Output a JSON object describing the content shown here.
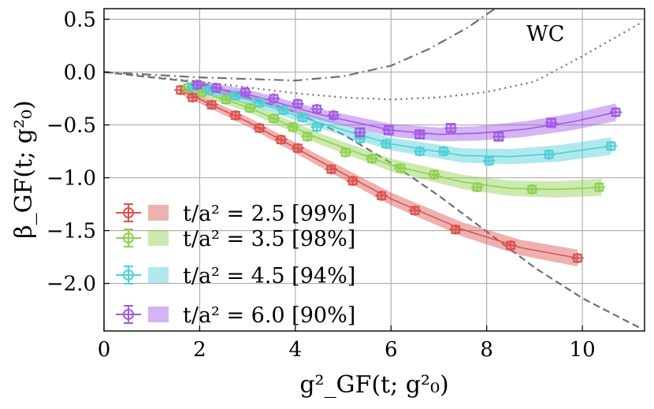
{
  "chart_data": {
    "type": "scatter",
    "xlabel": "g²_GF(t; g²₀)",
    "ylabel": "β_GF(t; g²₀)",
    "xlim": [
      0,
      11.3
    ],
    "ylim": [
      -2.45,
      0.6
    ],
    "x_ticks": [
      0,
      2,
      4,
      6,
      8,
      10
    ],
    "y_ticks": [
      0.5,
      0.0,
      -0.5,
      -1.0,
      -1.5,
      -2.0
    ],
    "x_tick_labels": [
      "0",
      "2",
      "4",
      "6",
      "8",
      "10"
    ],
    "y_tick_labels": [
      "0.5",
      "0.0",
      "−0.5",
      "−1.0",
      "−1.5",
      "−2.0"
    ],
    "grid": true,
    "legend_position": "lower-left",
    "annotation": "WC",
    "series": [
      {
        "name": "t/a² = 2.5 [99%]",
        "color": "#d9534f",
        "points": [
          {
            "x": 1.6,
            "y": -0.17,
            "marker": "o"
          },
          {
            "x": 1.85,
            "y": -0.24,
            "marker": "o"
          },
          {
            "x": 2.25,
            "y": -0.31,
            "marker": "o"
          },
          {
            "x": 2.75,
            "y": -0.41,
            "marker": "o"
          },
          {
            "x": 3.25,
            "y": -0.53,
            "marker": "o"
          },
          {
            "x": 3.7,
            "y": -0.64,
            "marker": "o"
          },
          {
            "x": 4.05,
            "y": -0.72,
            "marker": "o"
          },
          {
            "x": 4.75,
            "y": -0.92,
            "marker": "o"
          },
          {
            "x": 5.2,
            "y": -1.03,
            "marker": "o"
          },
          {
            "x": 5.8,
            "y": -1.17,
            "marker": "o"
          },
          {
            "x": 6.5,
            "y": -1.31,
            "marker": "o"
          },
          {
            "x": 7.35,
            "y": -1.49,
            "marker": "o"
          },
          {
            "x": 8.5,
            "y": -1.64,
            "marker": "o"
          },
          {
            "x": 9.9,
            "y": -1.76,
            "marker": "o"
          }
        ],
        "band": [
          [
            1.6,
            -0.17
          ],
          [
            3.0,
            -0.47
          ],
          [
            4.5,
            -0.84
          ],
          [
            6.0,
            -1.2
          ],
          [
            7.5,
            -1.49
          ],
          [
            8.7,
            -1.66
          ],
          [
            9.9,
            -1.76
          ]
        ]
      },
      {
        "name": "t/a² = 3.5 [98%]",
        "color": "#8fd14f",
        "points": [
          {
            "x": 1.75,
            "y": -0.15,
            "marker": "o"
          },
          {
            "x": 2.05,
            "y": -0.19,
            "marker": "o"
          },
          {
            "x": 2.55,
            "y": -0.26,
            "marker": "o"
          },
          {
            "x": 3.05,
            "y": -0.34,
            "marker": "o"
          },
          {
            "x": 3.55,
            "y": -0.44,
            "marker": "o"
          },
          {
            "x": 3.95,
            "y": -0.52,
            "marker": "o"
          },
          {
            "x": 4.25,
            "y": -0.61,
            "marker": "o"
          },
          {
            "x": 5.05,
            "y": -0.76,
            "marker": "o"
          },
          {
            "x": 5.6,
            "y": -0.82,
            "marker": "o"
          },
          {
            "x": 6.2,
            "y": -0.91,
            "marker": "o"
          },
          {
            "x": 6.9,
            "y": -0.97,
            "marker": "o"
          },
          {
            "x": 7.8,
            "y": -1.09,
            "marker": "o"
          },
          {
            "x": 8.95,
            "y": -1.11,
            "marker": "o"
          },
          {
            "x": 10.35,
            "y": -1.09,
            "marker": "o"
          }
        ],
        "band": [
          [
            1.75,
            -0.15
          ],
          [
            3.0,
            -0.33
          ],
          [
            4.5,
            -0.63
          ],
          [
            6.0,
            -0.88
          ],
          [
            7.5,
            -1.04
          ],
          [
            8.5,
            -1.1
          ],
          [
            9.5,
            -1.11
          ],
          [
            10.4,
            -1.09
          ]
        ]
      },
      {
        "name": "t/a² = 4.5 [94%]",
        "color": "#4fcfd6",
        "points": [
          {
            "x": 1.85,
            "y": -0.14,
            "marker": "o"
          },
          {
            "x": 2.2,
            "y": -0.17,
            "marker": "o"
          },
          {
            "x": 2.75,
            "y": -0.22,
            "marker": "o"
          },
          {
            "x": 3.25,
            "y": -0.29,
            "marker": "o"
          },
          {
            "x": 3.75,
            "y": -0.36,
            "marker": "o"
          },
          {
            "x": 4.15,
            "y": -0.43,
            "marker": "o"
          },
          {
            "x": 4.45,
            "y": -0.52,
            "marker": "o"
          },
          {
            "x": 5.35,
            "y": -0.63,
            "marker": "o"
          },
          {
            "x": 5.9,
            "y": -0.68,
            "marker": "o"
          },
          {
            "x": 6.6,
            "y": -0.75,
            "marker": "o"
          },
          {
            "x": 7.1,
            "y": -0.75,
            "marker": "o"
          },
          {
            "x": 8.05,
            "y": -0.84,
            "marker": "o"
          },
          {
            "x": 9.3,
            "y": -0.78,
            "marker": "o"
          },
          {
            "x": 10.6,
            "y": -0.7,
            "marker": "o"
          }
        ],
        "band": [
          [
            1.85,
            -0.14
          ],
          [
            3.0,
            -0.26
          ],
          [
            4.5,
            -0.48
          ],
          [
            6.0,
            -0.68
          ],
          [
            7.5,
            -0.79
          ],
          [
            8.5,
            -0.8
          ],
          [
            9.5,
            -0.77
          ],
          [
            10.6,
            -0.7
          ]
        ]
      },
      {
        "name": "t/a² = 6.0 [90%]",
        "color": "#a259e6",
        "points": [
          {
            "x": 1.95,
            "y": -0.12,
            "marker": "o"
          },
          {
            "x": 2.35,
            "y": -0.15,
            "marker": "o"
          },
          {
            "x": 2.95,
            "y": -0.19,
            "marker": "o"
          },
          {
            "x": 3.55,
            "y": -0.25,
            "marker": "o"
          },
          {
            "x": 4.05,
            "y": -0.3,
            "marker": "o"
          },
          {
            "x": 4.45,
            "y": -0.35,
            "marker": "o"
          },
          {
            "x": 4.8,
            "y": -0.41,
            "marker": "o"
          },
          {
            "x": 5.35,
            "y": -0.57,
            "marker": "s"
          },
          {
            "x": 5.95,
            "y": -0.55,
            "marker": "s"
          },
          {
            "x": 6.6,
            "y": -0.59,
            "marker": "s"
          },
          {
            "x": 7.25,
            "y": -0.53,
            "marker": "s"
          },
          {
            "x": 8.25,
            "y": -0.61,
            "marker": "s"
          },
          {
            "x": 9.35,
            "y": -0.48,
            "marker": "s"
          },
          {
            "x": 10.7,
            "y": -0.38,
            "marker": "o"
          }
        ],
        "band": [
          [
            1.95,
            -0.12
          ],
          [
            3.0,
            -0.21
          ],
          [
            4.5,
            -0.4
          ],
          [
            6.0,
            -0.55
          ],
          [
            7.0,
            -0.59
          ],
          [
            7.8,
            -0.58
          ],
          [
            8.8,
            -0.54
          ],
          [
            9.8,
            -0.47
          ],
          [
            10.7,
            -0.38
          ]
        ]
      }
    ],
    "reference_curves": [
      {
        "style": "dashed",
        "color": "#707070",
        "points": [
          [
            0,
            0
          ],
          [
            2,
            -0.1
          ],
          [
            4,
            -0.38
          ],
          [
            5,
            -0.59
          ],
          [
            6,
            -0.86
          ],
          [
            7,
            -1.17
          ],
          [
            8,
            -1.51
          ],
          [
            9,
            -1.85
          ],
          [
            10,
            -2.14
          ],
          [
            11.2,
            -2.42
          ]
        ]
      },
      {
        "style": "dotted",
        "color": "#707070",
        "points": [
          [
            0,
            0
          ],
          [
            2,
            -0.09
          ],
          [
            4,
            -0.2
          ],
          [
            5,
            -0.24
          ],
          [
            6,
            -0.26
          ],
          [
            7,
            -0.24
          ],
          [
            8,
            -0.19
          ],
          [
            9,
            -0.09
          ],
          [
            10,
            0.15
          ],
          [
            11.2,
            0.46
          ]
        ]
      },
      {
        "style": "dashdot",
        "color": "#707070",
        "points": [
          [
            0,
            0
          ],
          [
            2,
            -0.05
          ],
          [
            4,
            -0.08
          ],
          [
            5,
            -0.04
          ],
          [
            6,
            0.06
          ],
          [
            6.8,
            0.22
          ],
          [
            7.6,
            0.42
          ],
          [
            8.3,
            0.64
          ]
        ]
      }
    ]
  }
}
